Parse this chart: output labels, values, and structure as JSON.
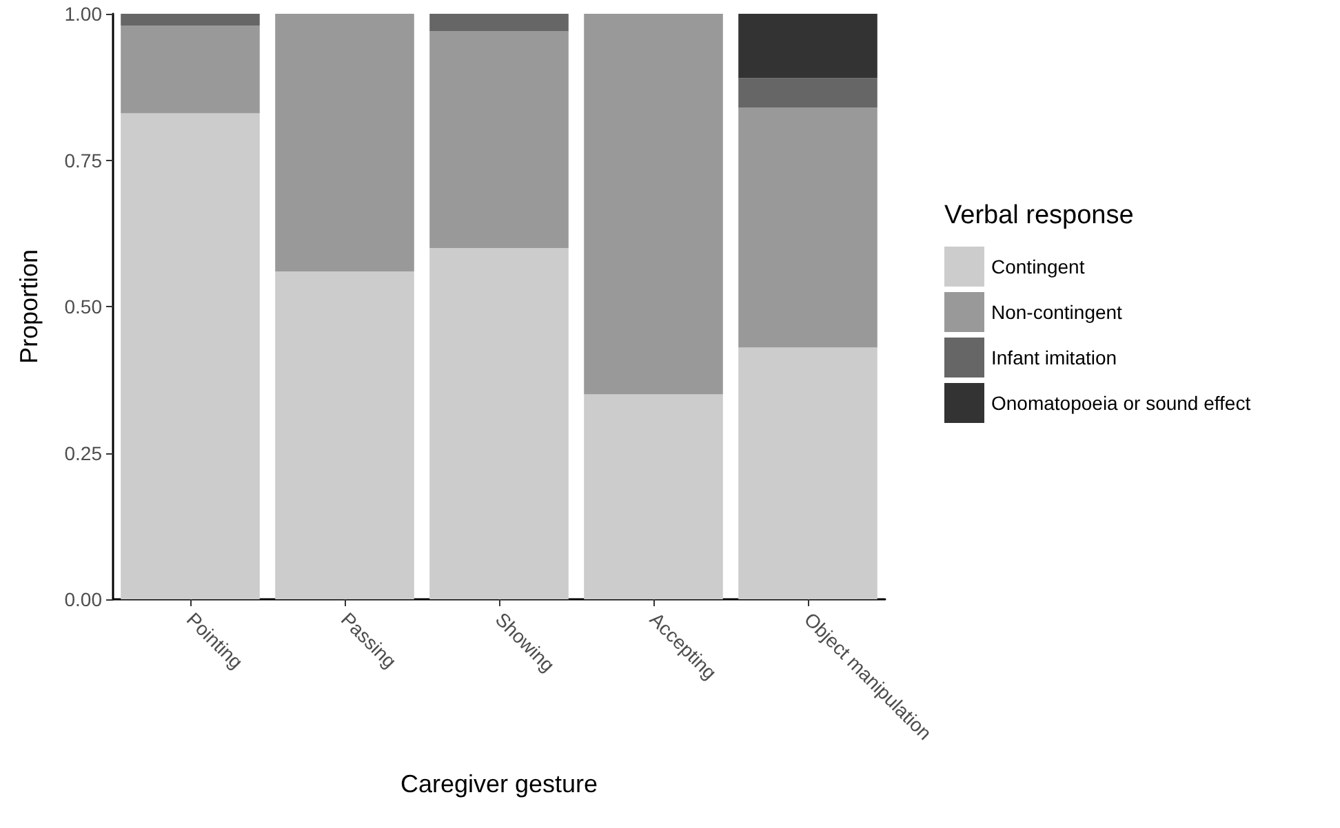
{
  "chart_data": {
    "type": "bar",
    "stacked": true,
    "xlabel": "Caregiver gesture",
    "ylabel": "Proportion",
    "legend_title": "Verbal response",
    "legend": "right",
    "categories": [
      "Pointing",
      "Passing",
      "Showing",
      "Accepting",
      "Object manipulation"
    ],
    "series": [
      {
        "name": "Contingent",
        "color": "#cccccc",
        "values": [
          0.83,
          0.56,
          0.6,
          0.35,
          0.43
        ]
      },
      {
        "name": "Non-contingent",
        "color": "#999999",
        "values": [
          0.15,
          0.44,
          0.37,
          0.65,
          0.41
        ]
      },
      {
        "name": "Infant imitation",
        "color": "#666666",
        "values": [
          0.02,
          null,
          0.03,
          null,
          0.05
        ]
      },
      {
        "name": "Onomatopoeia or sound effect",
        "color": "#333333",
        "values": [
          null,
          null,
          null,
          null,
          0.11
        ]
      }
    ],
    "ylim": [
      0,
      1
    ],
    "yticks": [
      {
        "value": 0,
        "label": "0.00"
      },
      {
        "value": 0.25,
        "label": "0.25"
      },
      {
        "value": 0.5,
        "label": "0.50"
      },
      {
        "value": 0.75,
        "label": "0.75"
      },
      {
        "value": 1,
        "label": "1.00"
      }
    ],
    "grid": false
  }
}
